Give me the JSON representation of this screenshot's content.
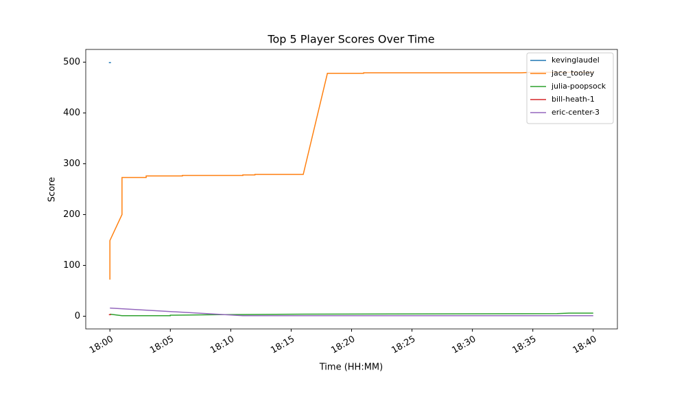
{
  "chart_data": {
    "type": "line",
    "title": "Top 5 Player Scores Over Time",
    "x_label": "Time (HH:MM)",
    "y_label": "Score",
    "xlim": [
      "17:58",
      "18:42"
    ],
    "xticks": [
      "18:00",
      "18:05",
      "18:10",
      "18:15",
      "18:20",
      "18:25",
      "18:30",
      "18:35",
      "18:40"
    ],
    "ylim": [
      -25,
      525
    ],
    "yticks": [
      0,
      100,
      200,
      300,
      400,
      500
    ],
    "legend": "upper right",
    "series": [
      {
        "name": "kevinglaudel",
        "color": "#1f77b4",
        "x": [
          "18:00"
        ],
        "values": [
          499
        ]
      },
      {
        "name": "jace_tooley",
        "color": "#ff7f0e",
        "x": [
          "18:00",
          "18:00",
          "18:01",
          "18:01",
          "18:03",
          "18:03",
          "18:06",
          "18:06",
          "18:11",
          "18:11",
          "18:12",
          "18:12",
          "18:16",
          "18:18",
          "18:21",
          "18:21",
          "18:34",
          "18:35",
          "18:40"
        ],
        "values": [
          72,
          149,
          200,
          273,
          273,
          276,
          276,
          277,
          277,
          278,
          278,
          279,
          279,
          478,
          478,
          479,
          479,
          480,
          480
        ]
      },
      {
        "name": "julia-poopsock",
        "color": "#2ca02c",
        "x": [
          "18:00",
          "18:01",
          "18:05",
          "18:05",
          "18:09",
          "18:16",
          "18:37",
          "18:38",
          "18:40"
        ],
        "values": [
          4,
          1,
          1,
          2,
          3,
          4,
          5,
          6,
          6
        ]
      },
      {
        "name": "bill-heath-1",
        "color": "#d62728",
        "x": [
          "18:00"
        ],
        "values": [
          3
        ]
      },
      {
        "name": "eric-center-3",
        "color": "#9467bd",
        "x": [
          "18:00",
          "18:11",
          "18:40"
        ],
        "values": [
          16,
          1,
          1
        ]
      }
    ]
  }
}
